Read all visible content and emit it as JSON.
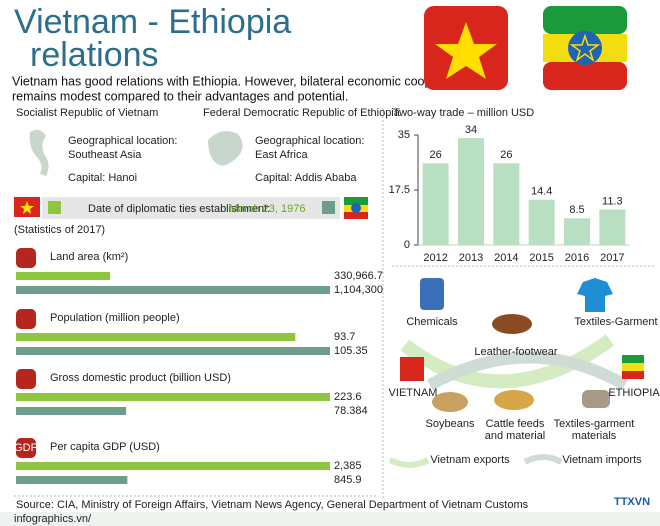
{
  "header": {
    "title_line1": "Vietnam - Ethiopia",
    "title_line2": "relations",
    "intro": [
      "Vietnam has good relations with Ethiopia. However, bilateral economic cooperation",
      "remains modest compared to their advantages and  potential."
    ]
  },
  "countries": [
    {
      "name": "Socialist Republic of Vietnam",
      "location_label": "Geographical location:",
      "location": "Southeast Asia",
      "capital": "Capital: Hanoi"
    },
    {
      "name": "Federal Democratic Republic of Ethiopia",
      "location_label": "Geographical location:",
      "location": "East Africa",
      "capital": "Capital: Addis Ababa"
    }
  ],
  "diplomatic_ties": {
    "label": "Date of diplomatic ties establishment:",
    "date": "March 23, 1976"
  },
  "statistics_note": "(Statistics of 2017)",
  "indicators": [
    {
      "label": "Land area (km²)",
      "values": [
        330966.7,
        1104300
      ],
      "value_labels": [
        "330,966.7",
        "1,104,300"
      ]
    },
    {
      "label": "Population (million people)",
      "values": [
        93.7,
        105.35
      ]
    },
    {
      "label": "Gross domestic product (billion USD)",
      "values": [
        223.6,
        78.384
      ]
    },
    {
      "label": "Per capita GDP (USD)",
      "icon": "GDP",
      "values": [
        2385,
        845.9
      ],
      "value_labels": [
        "2,385",
        "845.9"
      ]
    }
  ],
  "source": "Source: CIA, Ministry of Foreign Affairs, Vietnam News Agency, General Department of Vietnam Customs",
  "site": "infographics.vn/",
  "chart_data": {
    "type": "bar",
    "title": "Two-way trade – million USD",
    "categories": [
      "2012",
      "2013",
      "2014",
      "2015",
      "2016",
      "2017"
    ],
    "values": [
      26,
      34,
      26,
      14.4,
      8.5,
      11.3
    ],
    "color": "#b8dfc2",
    "ylim": [
      0,
      35
    ],
    "yticks": [
      0,
      17.5,
      35
    ],
    "grid": false
  },
  "trade_flows": {
    "from": "VIETNAM",
    "to": "ETHIOPIA",
    "exports": [
      [
        "Chemicals"
      ],
      [
        "Leather-footwear"
      ],
      [
        "Textiles-Garment"
      ]
    ],
    "imports": [
      [
        "Soybeans"
      ],
      [
        "Cattle feeds",
        "and material"
      ],
      [
        "Textiles-garment",
        "materials"
      ]
    ],
    "exports_legend": "Vietnam exports",
    "imports_legend": "Vietnam imports"
  },
  "logo": "TTXVN"
}
